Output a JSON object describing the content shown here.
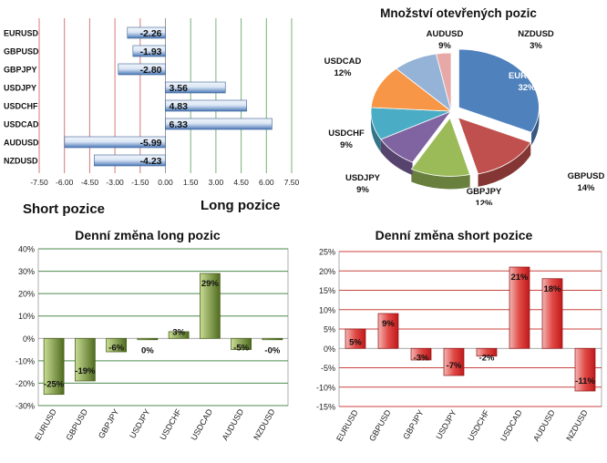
{
  "page_labels": {
    "short_label": "Short pozice",
    "long_label": "Long pozice"
  },
  "chart_data": [
    {
      "id": "positions",
      "type": "bar",
      "orientation": "horizontal",
      "title": "",
      "categories": [
        "EURUSD",
        "GBPUSD",
        "GBPJPY",
        "USDJPY",
        "USDCHF",
        "USDCAD",
        "AUDUSD",
        "NZDUSD"
      ],
      "values": [
        -2.26,
        -1.93,
        -2.8,
        3.56,
        4.83,
        6.33,
        -5.99,
        -4.23
      ],
      "value_labels": [
        "-2.26",
        "-1.93",
        "-2.80",
        "3.56",
        "4.83",
        "6.33",
        "-5.99",
        "-4.23"
      ],
      "xlim": [
        -7.5,
        7.5
      ],
      "xticks": [
        -7.5,
        -6,
        -4.5,
        -3,
        -1.5,
        0,
        1.5,
        3,
        4.5,
        6,
        7.5
      ],
      "xtick_labels": [
        "-7.50",
        "-6.00",
        "-4.50",
        "-3.00",
        "-1.50",
        "0.00",
        "1.50",
        "3.00",
        "4.50",
        "6.00",
        "7.50"
      ],
      "gridlines": "vertical",
      "colors": {
        "bar": "#4a78b8",
        "bar_light": "#dce7f5",
        "grid_negative": "#d47a7a",
        "grid_positive": "#7ab07a"
      }
    },
    {
      "id": "open_positions",
      "type": "pie",
      "title": "Množství otevřených pozic",
      "slices": [
        {
          "label": "EURUSD",
          "value": 32,
          "pct": "32%",
          "color": "#4f81bd"
        },
        {
          "label": "GBPUSD",
          "value": 14,
          "pct": "14%",
          "color": "#c0504d"
        },
        {
          "label": "GBPJPY",
          "value": 12,
          "pct": "12%",
          "color": "#9bbb59"
        },
        {
          "label": "USDJPY",
          "value": 9,
          "pct": "9%",
          "color": "#8064a2"
        },
        {
          "label": "USDCHF",
          "value": 9,
          "pct": "9%",
          "color": "#4bacc6"
        },
        {
          "label": "USDCAD",
          "value": 12,
          "pct": "12%",
          "color": "#f79646"
        },
        {
          "label": "AUDUSD",
          "value": 9,
          "pct": "9%",
          "color": "#95b3d7"
        },
        {
          "label": "NZDUSD",
          "value": 3,
          "pct": "3%",
          "color": "#e6a9a8"
        }
      ]
    },
    {
      "id": "daily_long",
      "type": "bar",
      "title": "Denní změna long pozic",
      "categories": [
        "EURUSD",
        "GBPUSD",
        "GBPJPY",
        "USDJPY",
        "USDCHF",
        "USDCAD",
        "AUDUSD",
        "NZDUSD"
      ],
      "values": [
        -25,
        -19,
        -6,
        0,
        3,
        29,
        -5,
        0
      ],
      "value_labels": [
        "-25%",
        "-19%",
        "-6%",
        "0%",
        "3%",
        "29%",
        "-5%",
        "-0%"
      ],
      "ylim": [
        -30,
        40
      ],
      "yticks": [
        -30,
        -20,
        -10,
        0,
        10,
        20,
        30,
        40
      ],
      "ytick_labels": [
        "-30%",
        "-20%",
        "-10%",
        "0%",
        "10%",
        "20%",
        "30%",
        "40%"
      ],
      "colors": {
        "bar": "#4f6b1e",
        "bar_light": "#c9dc94",
        "grid": "#4e8a4e"
      }
    },
    {
      "id": "daily_short",
      "type": "bar",
      "title": "Denní změna short pozice",
      "categories": [
        "EURUSD",
        "GBPUSD",
        "GBPJPY",
        "USDJPY",
        "USDCHF",
        "USDCAD",
        "AUDUSD",
        "NZDUSD"
      ],
      "values": [
        5,
        9,
        -3,
        -7,
        -2,
        21,
        18,
        -11
      ],
      "value_labels": [
        "5%",
        "9%",
        "-3%",
        "-7%",
        "-2%",
        "21%",
        "18%",
        "-11%"
      ],
      "ylim": [
        -15,
        25
      ],
      "yticks": [
        -15,
        -10,
        -5,
        0,
        5,
        10,
        15,
        20,
        25
      ],
      "ytick_labels": [
        "-15%",
        "-10%",
        "-5%",
        "0%",
        "5%",
        "10%",
        "15%",
        "20%",
        "25%"
      ],
      "colors": {
        "bar": "#c0191b",
        "grid": "#c9433f"
      }
    }
  ]
}
